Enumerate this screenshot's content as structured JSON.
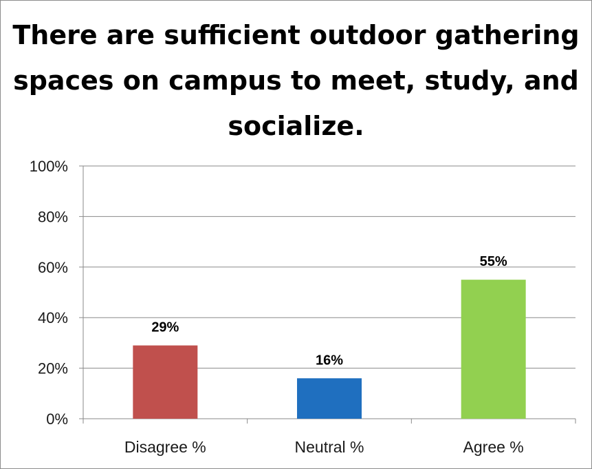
{
  "chart_data": {
    "type": "bar",
    "title": "There are sufficient outdoor gathering spaces on campus to meet, study, and socialize.",
    "categories": [
      "Disagree %",
      "Neutral %",
      "Agree %"
    ],
    "values": [
      29,
      16,
      55
    ],
    "data_labels": [
      "29%",
      "16%",
      "55%"
    ],
    "bar_colors": [
      "#c0504d",
      "#1f6fbf",
      "#92d050"
    ],
    "ylim": [
      0,
      100
    ],
    "yticks": [
      0,
      20,
      40,
      60,
      80,
      100
    ],
    "ytick_labels": [
      "0%",
      "20%",
      "40%",
      "60%",
      "80%",
      "100%"
    ],
    "xlabel": "",
    "ylabel": "",
    "grid": true,
    "legend": "none"
  }
}
